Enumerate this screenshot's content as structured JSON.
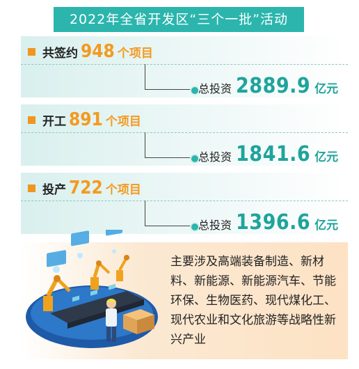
{
  "title": "2022年全省开发区“三个一批”活动",
  "items": [
    {
      "label": "共签约",
      "count": "948",
      "count_unit": "个项目",
      "invest_label": "总投资",
      "invest_value": "2889.9",
      "invest_unit": "亿元"
    },
    {
      "label": "开工",
      "count": "891",
      "count_unit": "个项目",
      "invest_label": "总投资",
      "invest_value": "1841.6",
      "invest_unit": "亿元"
    },
    {
      "label": "投产",
      "count": "722",
      "count_unit": "个项目",
      "invest_label": "总投资",
      "invest_value": "1396.6",
      "invest_unit": "亿元"
    }
  ],
  "description": "主要涉及高端装备制造、新材料、新能源、新能源汽车、节能环保、生物医药、现代煤化工、现代农业和文化旅游等战略性新兴产业",
  "colors": {
    "teal": "#2bb5ad",
    "orange": "#f39a1f",
    "peach": "#fde2c4"
  },
  "illustration": "factory-assembly-line-icon"
}
